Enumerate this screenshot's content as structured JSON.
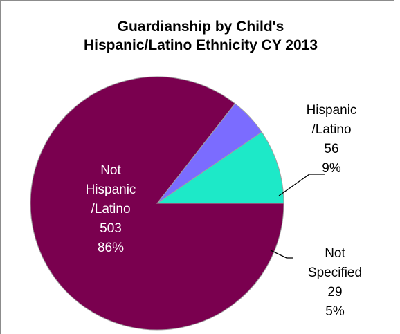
{
  "chart_data": {
    "type": "pie",
    "title_lines": [
      "Guardianship by Child's",
      "Hispanic/Latino Ethnicity  CY 2013"
    ],
    "slices": [
      {
        "label_lines": [
          "Hispanic",
          "/Latino"
        ],
        "value": 56,
        "value_text": "56",
        "percent": 9,
        "percent_text": "9%",
        "color": "#1de9c8"
      },
      {
        "label_lines": [
          "Not",
          "Specified"
        ],
        "value": 29,
        "value_text": "29",
        "percent": 5,
        "percent_text": "5%",
        "color": "#7b6cff"
      },
      {
        "label_lines": [
          "Not",
          "Hispanic",
          "/Latino"
        ],
        "value": 503,
        "value_text": "503",
        "percent": 86,
        "percent_text": "86%",
        "color": "#7a004f"
      }
    ],
    "start_angle_deg": 0,
    "direction": "clockwise",
    "legend": "none",
    "leader_lines": true
  }
}
